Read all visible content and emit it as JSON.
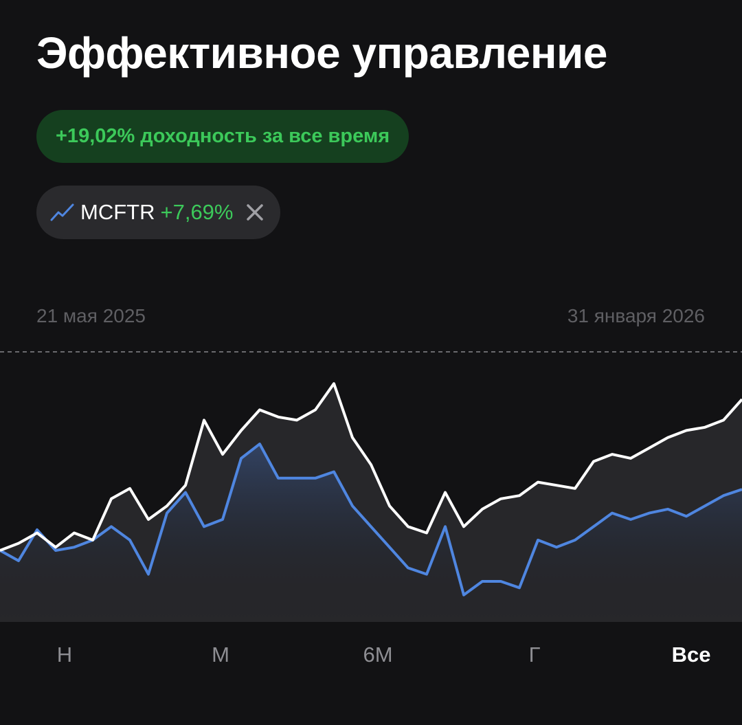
{
  "title": "Эффективное управление",
  "return_badge": {
    "value_label": "+19,02%",
    "text": "доходность за все время"
  },
  "benchmark_chip": {
    "value_label": "+7,69%"
  },
  "chart_data": {
    "type": "line",
    "date_start": "21 мая 2025",
    "date_end": "31 января 2026",
    "ylim": [
      -9,
      25
    ],
    "series": [
      {
        "color": "#ffffff",
        "values": [
          0,
          0.9,
          2.2,
          0.4,
          2.2,
          1.3,
          6.5,
          7.8,
          3.9,
          5.6,
          8.2,
          16.4,
          12.1,
          15.1,
          17.7,
          16.8,
          16.4,
          17.7,
          21,
          14.2,
          10.8,
          5.6,
          3.0,
          2.2,
          7.3,
          3.0,
          5.2,
          6.5,
          6.9,
          8.6,
          8.2,
          7.8,
          11.2,
          12.1,
          11.6,
          12.9,
          14.2,
          15.1,
          15.5,
          16.4,
          19.02
        ]
      },
      {
        "name": "MCFTR",
        "color": "#4f86e0",
        "values": [
          0,
          -1.3,
          2.6,
          0,
          0.4,
          1.3,
          3.0,
          1.3,
          -3.0,
          4.7,
          7.3,
          3.0,
          3.9,
          11.6,
          13.4,
          9.1,
          9.1,
          9.1,
          9.9,
          5.6,
          3.0,
          0.4,
          -2.2,
          -3.0,
          3.0,
          -5.6,
          -3.9,
          -3.9,
          -4.7,
          1.3,
          0.4,
          1.3,
          3.0,
          4.7,
          3.9,
          4.7,
          5.2,
          4.3,
          5.6,
          6.9,
          7.69
        ]
      }
    ]
  },
  "period_tabs": [
    "Н",
    "М",
    "6М",
    "Г",
    "Все"
  ],
  "selected_tab": 4
}
